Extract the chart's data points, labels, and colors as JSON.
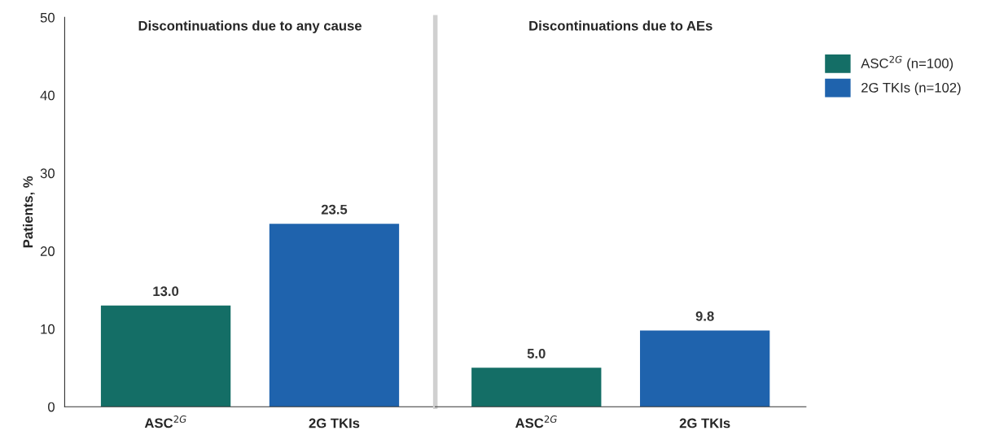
{
  "chart_data": [
    {
      "type": "bar",
      "title": "Discontinuations due to any cause",
      "ylabel": "Patients, %",
      "categories": [
        "ASC$^{2G}$",
        "2G TKIs"
      ],
      "stacked": true,
      "ylim": [
        0,
        50
      ],
      "yticks": [
        0,
        10,
        20,
        30,
        40,
        50
      ],
      "grid": false,
      "series": [
        {
          "color": "#146e66",
          "values": [
            13.0,
            null
          ],
          "value_labels": [
            "13.0",
            null
          ]
        },
        {
          "color": "#1f63ad",
          "values": [
            null,
            23.5
          ],
          "value_labels": [
            null,
            "23.5"
          ]
        }
      ]
    },
    {
      "type": "bar",
      "title": "Discontinuations due to AEs",
      "categories": [
        "ASC$^{2G}$",
        "2G TKIs"
      ],
      "stacked": true,
      "ylim": [
        0,
        50
      ],
      "yticks": [
        0,
        10,
        20,
        30,
        40,
        50
      ],
      "grid": false,
      "legend": "right",
      "tick_labels": "x",
      "series": [
        {
          "name": "ASC$^{2G}$ (n=100)",
          "color": "#146e66",
          "values": [
            5.0,
            null
          ],
          "value_labels": [
            "5.0",
            null
          ]
        },
        {
          "name": "2G TKIs (n=102)",
          "color": "#1f63ad",
          "values": [
            null,
            9.8
          ],
          "value_labels": [
            null,
            "9.8"
          ]
        }
      ]
    }
  ]
}
